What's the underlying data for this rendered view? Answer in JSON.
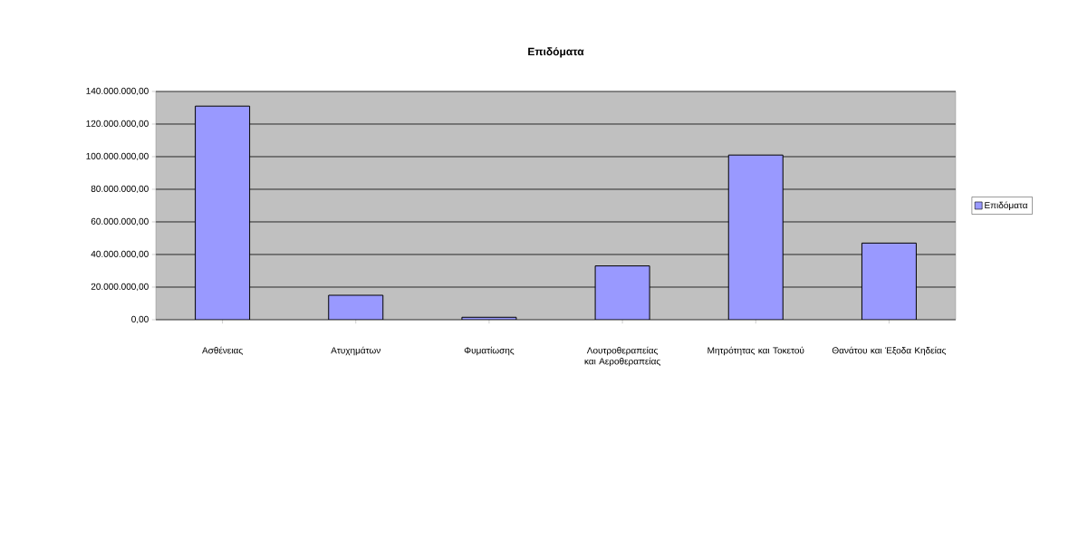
{
  "chart_data": {
    "type": "bar",
    "title": "Επιδόματα",
    "categories": [
      "Ασθένειας",
      "Ατυχημάτων",
      "Φυματίωσης",
      "Λουτροθεραπείας και Αεροθεραπείας",
      "Μητρότητας και Τοκετού",
      "Θανάτου και Έξοδα Κηδείας"
    ],
    "series": [
      {
        "name": "Επιδόματα",
        "color": "#9999ff",
        "values": [
          131000000,
          15000000,
          1500000,
          33000000,
          101000000,
          47000000
        ]
      }
    ],
    "ylim": [
      0,
      140000000
    ],
    "yticks": [
      {
        "value": 0,
        "label": "0,00"
      },
      {
        "value": 20000000,
        "label": "20.000.000,00"
      },
      {
        "value": 40000000,
        "label": "40.000.000,00"
      },
      {
        "value": 60000000,
        "label": "60.000.000,00"
      },
      {
        "value": 80000000,
        "label": "80.000.000,00"
      },
      {
        "value": 100000000,
        "label": "100.000.000,00"
      },
      {
        "value": 120000000,
        "label": "120.000.000,00"
      },
      {
        "value": 140000000,
        "label": "140.000.000,00"
      }
    ],
    "grid": "y",
    "legend": "right"
  }
}
